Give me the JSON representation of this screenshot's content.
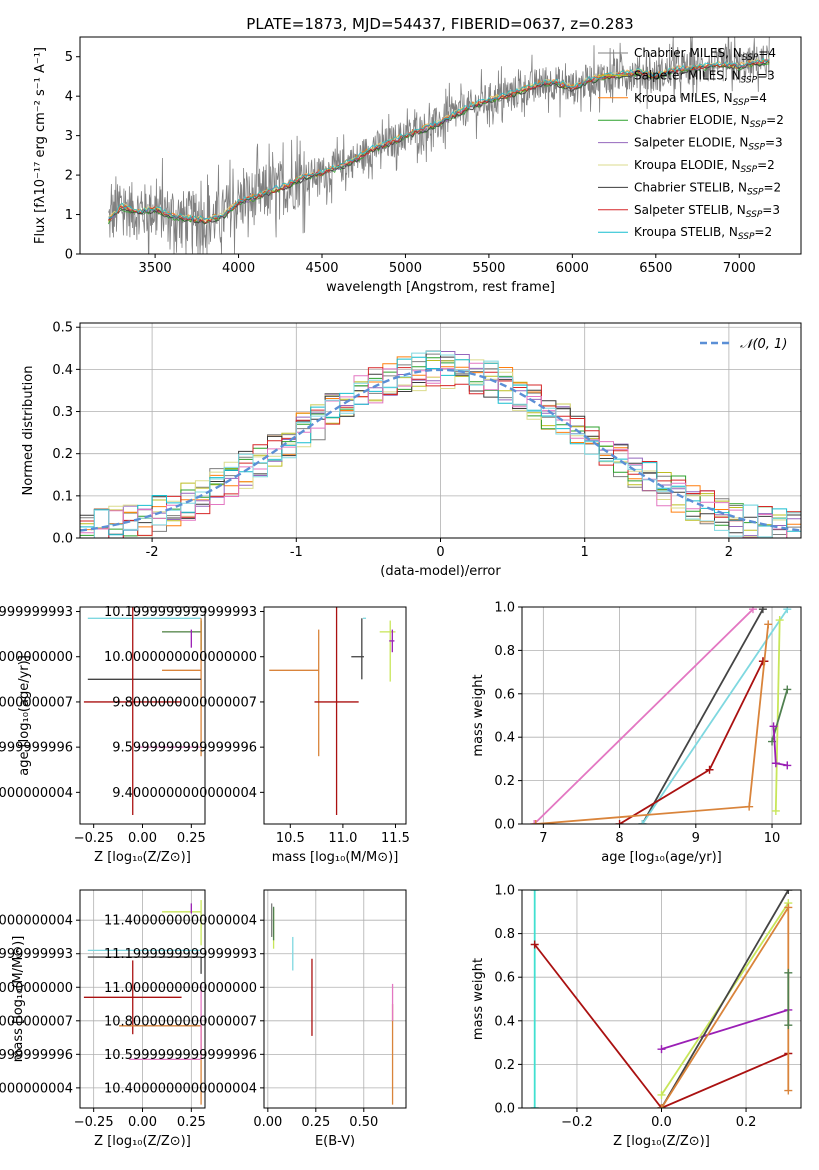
{
  "title": "PLATE=1873, MJD=54437, FIBERID=0637, z=0.283",
  "colors": {
    "m1": "#7f7f7f",
    "m2": "#bcbd22",
    "m3": "#ff7f0e",
    "m4": "#2ca02c",
    "m5": "#9467bd",
    "m6": "#dbdb8d",
    "m7": "#3b3b3b",
    "m8": "#d62728",
    "m9": "#17becf",
    "gray": "#808080",
    "dark": "#444444",
    "red": "#aa1111",
    "orange": "#d9843b",
    "pink": "#e377c2",
    "cyan": "#7fd8e0",
    "purple": "#9a1fb5",
    "lime": "#c8e65a",
    "green": "#508050",
    "teal": "#40e0d0",
    "normal": "#5b8fd6"
  },
  "chart_data": [
    {
      "id": "spectrum",
      "type": "line",
      "title": "PLATE=1873, MJD=54437, FIBERID=0637, z=0.283",
      "xlabel": "wavelength [Angstrom, rest frame]",
      "ylabel": "Flux [fλ10⁻¹⁷ erg cm⁻² s⁻¹ A⁻¹]",
      "xlim": [
        3050,
        7370
      ],
      "ylim": [
        0,
        5.5
      ],
      "xticks": [
        3500,
        4000,
        4500,
        5000,
        5500,
        6000,
        6500,
        7000
      ],
      "yticks": [
        0,
        1,
        2,
        3,
        4,
        5
      ],
      "legend_position": "upper right",
      "legend": [
        {
          "label": "Chabrier MILES, N",
          "sub": "SSP",
          "tail": "=4",
          "color": "#7f7f7f"
        },
        {
          "label": "Salpeter MILES, N",
          "sub": "SSP",
          "tail": "=3",
          "color": "#bcbd22"
        },
        {
          "label": "Kroupa MILES, N",
          "sub": "SSP",
          "tail": "=4",
          "color": "#ff7f0e"
        },
        {
          "label": "Chabrier ELODIE, N",
          "sub": "SSP",
          "tail": "=2",
          "color": "#2ca02c"
        },
        {
          "label": "Salpeter ELODIE, N",
          "sub": "SSP",
          "tail": "=3",
          "color": "#9467bd"
        },
        {
          "label": "Kroupa ELODIE, N",
          "sub": "SSP",
          "tail": "=2",
          "color": "#dbdb8d"
        },
        {
          "label": "Chabrier STELIB, N",
          "sub": "SSP",
          "tail": "=2",
          "color": "#3b3b3b"
        },
        {
          "label": "Salpeter STELIB, N",
          "sub": "SSP",
          "tail": "=3",
          "color": "#d62728"
        },
        {
          "label": "Kroupa STELIB, N",
          "sub": "SSP",
          "tail": "=2",
          "color": "#17becf"
        }
      ],
      "continuum": [
        [
          3220,
          0.85
        ],
        [
          3300,
          1.2
        ],
        [
          3400,
          1.05
        ],
        [
          3500,
          1.15
        ],
        [
          3600,
          0.95
        ],
        [
          3700,
          0.9
        ],
        [
          3800,
          0.85
        ],
        [
          3900,
          0.95
        ],
        [
          4000,
          1.3
        ],
        [
          4100,
          1.45
        ],
        [
          4200,
          1.6
        ],
        [
          4300,
          1.75
        ],
        [
          4400,
          1.95
        ],
        [
          4500,
          2.05
        ],
        [
          4600,
          2.2
        ],
        [
          4700,
          2.4
        ],
        [
          4800,
          2.65
        ],
        [
          4900,
          2.8
        ],
        [
          5000,
          3.0
        ],
        [
          5100,
          3.15
        ],
        [
          5200,
          3.3
        ],
        [
          5300,
          3.55
        ],
        [
          5400,
          3.75
        ],
        [
          5500,
          3.9
        ],
        [
          5600,
          4.0
        ],
        [
          5700,
          4.15
        ],
        [
          5800,
          4.3
        ],
        [
          5900,
          4.35
        ],
        [
          6000,
          4.2
        ],
        [
          6100,
          4.4
        ],
        [
          6200,
          4.5
        ],
        [
          6300,
          4.55
        ],
        [
          6400,
          4.6
        ],
        [
          6500,
          4.5
        ],
        [
          6600,
          4.65
        ],
        [
          6700,
          4.7
        ],
        [
          6800,
          4.75
        ],
        [
          6900,
          4.8
        ],
        [
          7000,
          4.75
        ],
        [
          7100,
          4.85
        ],
        [
          7180,
          4.9
        ]
      ]
    },
    {
      "id": "residuals",
      "type": "histogram",
      "xlabel": "(data-model)/error",
      "ylabel": "Normed distribution",
      "xlim": [
        -2.5,
        2.5
      ],
      "ylim": [
        0,
        0.51
      ],
      "xticks": [
        -2,
        -1,
        0,
        1,
        2
      ],
      "yticks": [
        0.0,
        0.1,
        0.2,
        0.3,
        0.4,
        0.5
      ],
      "legend_position": "upper right",
      "legend_label": "𝒩(0, 1)",
      "bin_width": 0.1,
      "bin_start": -2.5
    },
    {
      "id": "z-age",
      "type": "scatter",
      "xlabel": "Z [log₁₀(Z/Z⊙)]",
      "ylabel": "age  [log₁₀(age/yr)]",
      "xlim": [
        -0.32,
        0.32
      ],
      "ylim": [
        9.26,
        10.22
      ],
      "xticks": [
        -0.25,
        0.0,
        0.25
      ],
      "yticks": [
        9.4,
        9.6,
        9.8,
        10.0,
        10.2
      ],
      "points": [
        {
          "x": 0.3,
          "y": 10.17,
          "xerr": [
            0.58,
            0.0
          ],
          "yerr": [
            0.0,
            0.0
          ],
          "color": "#7fd8e0"
        },
        {
          "x": 0.3,
          "y": 10.11,
          "xerr": [
            0.2,
            0.0
          ],
          "yerr": [
            0.08,
            0.05
          ],
          "color": "#c8e65a"
        },
        {
          "x": 0.3,
          "y": 10.11,
          "xerr": [
            0.2,
            0.0
          ],
          "yerr": [
            0.08,
            0.05
          ],
          "color": "#508050"
        },
        {
          "x": 0.25,
          "y": 10.07,
          "xerr": [
            0.0,
            0.0
          ],
          "yerr": [
            0.03,
            0.05
          ],
          "color": "#9a1fb5"
        },
        {
          "x": 0.3,
          "y": 9.94,
          "xerr": [
            0.2,
            0.0
          ],
          "yerr": [
            0.38,
            0.23
          ],
          "color": "#d9843b"
        },
        {
          "x": 0.3,
          "y": 9.9,
          "xerr": [
            0.58,
            0.0
          ],
          "yerr": [
            0.0,
            0.0
          ],
          "color": "#444444"
        },
        {
          "x": -0.05,
          "y": 9.8,
          "xerr": [
            0.25,
            0.25
          ],
          "yerr": [
            0.5,
            0.5
          ],
          "color": "#aa1111"
        },
        {
          "x": 0.3,
          "y": 9.6,
          "xerr": [
            0.33,
            0.0
          ],
          "yerr": [
            0.0,
            0.0
          ],
          "color": "#e377c2"
        }
      ]
    },
    {
      "id": "mass-age",
      "type": "scatter",
      "xlabel": "mass [log₁₀(M/M⊙)]",
      "ylabel": "",
      "xlim": [
        10.25,
        11.6
      ],
      "ylim": [
        9.26,
        10.22
      ],
      "xticks": [
        10.5,
        11.0,
        11.5
      ],
      "yticks": [
        9.4,
        9.6,
        9.8,
        10.0,
        10.2
      ],
      "points": [
        {
          "x": 11.22,
          "y": 10.17,
          "xerr": [
            0.03,
            0.0
          ],
          "yerr": [
            0.0,
            0.0
          ],
          "color": "#7fd8e0"
        },
        {
          "x": 11.45,
          "y": 10.11,
          "xerr": [
            0.1,
            0.05
          ],
          "yerr": [
            0.22,
            0.05
          ],
          "color": "#c8e65a"
        },
        {
          "x": 11.47,
          "y": 10.07,
          "xerr": [
            0.03,
            0.02
          ],
          "yerr": [
            0.05,
            0.05
          ],
          "color": "#9a1fb5"
        },
        {
          "x": 11.18,
          "y": 10.0,
          "xerr": [
            0.1,
            0.02
          ],
          "yerr": [
            0.1,
            0.17
          ],
          "color": "#444444"
        },
        {
          "x": 10.77,
          "y": 9.94,
          "xerr": [
            0.0,
            0.0
          ],
          "yerr": [
            0.38,
            0.18
          ],
          "color": "#d9843b"
        },
        {
          "x": 10.3,
          "y": 9.94,
          "xerr": [
            0.0,
            0.47
          ],
          "yerr": [
            0.0,
            0.0
          ],
          "color": "#d9843b"
        },
        {
          "x": 10.94,
          "y": 9.8,
          "xerr": [
            0.21,
            0.21
          ],
          "yerr": [
            0.5,
            0.5
          ],
          "color": "#aa1111"
        },
        {
          "x": 10.57,
          "y": 9.6,
          "xerr": [
            0.0,
            0.0
          ],
          "yerr": [
            0.0,
            0.0
          ],
          "color": "#e377c2"
        }
      ]
    },
    {
      "id": "age-massweight",
      "type": "line",
      "xlabel": "age  [log₁₀(age/yr)]",
      "ylabel": "mass weight",
      "xlim": [
        6.72,
        10.38
      ],
      "ylim": [
        0,
        1.0
      ],
      "xticks": [
        7,
        8,
        9,
        10
      ],
      "yticks": [
        0.0,
        0.2,
        0.4,
        0.6,
        0.8,
        1.0
      ],
      "series": [
        {
          "color": "#e377c2",
          "points": [
            [
              6.88,
              0.0
            ],
            [
              9.75,
              0.99
            ]
          ]
        },
        {
          "color": "#444444",
          "points": [
            [
              8.3,
              0.0
            ],
            [
              9.88,
              0.99
            ]
          ]
        },
        {
          "color": "#7fd8e0",
          "points": [
            [
              8.3,
              0.0
            ],
            [
              10.2,
              0.99
            ]
          ]
        },
        {
          "color": "#aa1111",
          "points": [
            [
              8.0,
              0.0
            ],
            [
              9.18,
              0.25
            ],
            [
              9.88,
              0.75
            ],
            [
              9.9,
              0.75
            ]
          ]
        },
        {
          "color": "#d9843b",
          "points": [
            [
              6.9,
              0.0
            ],
            [
              9.7,
              0.08
            ],
            [
              9.95,
              0.92
            ]
          ]
        },
        {
          "color": "#c8e65a",
          "points": [
            [
              10.05,
              0.06
            ],
            [
              10.1,
              0.94
            ]
          ]
        },
        {
          "color": "#508050",
          "points": [
            [
              10.0,
              0.38
            ],
            [
              10.2,
              0.62
            ]
          ]
        },
        {
          "color": "#9a1fb5",
          "points": [
            [
              10.02,
              0.45
            ],
            [
              10.05,
              0.28
            ],
            [
              10.2,
              0.27
            ]
          ]
        }
      ]
    },
    {
      "id": "z-mass",
      "type": "scatter",
      "xlabel": "Z [log₁₀(Z/Z⊙)]",
      "ylabel": "mass [log₁₀(M/M⊙)]",
      "xlim": [
        -0.32,
        0.32
      ],
      "ylim": [
        10.28,
        11.58
      ],
      "xticks": [
        -0.25,
        0.0,
        0.25
      ],
      "yticks": [
        10.4,
        10.6,
        10.8,
        11.0,
        11.2,
        11.4
      ],
      "points": [
        {
          "x": 0.3,
          "y": 11.22,
          "xerr": [
            0.58,
            0.0
          ],
          "yerr": [
            0.0,
            0.0
          ],
          "color": "#7fd8e0"
        },
        {
          "x": 0.3,
          "y": 11.18,
          "xerr": [
            0.58,
            0.0
          ],
          "yerr": [
            0.1,
            0.0
          ],
          "color": "#444444"
        },
        {
          "x": 0.3,
          "y": 11.45,
          "xerr": [
            0.2,
            0.0
          ],
          "yerr": [
            0.2,
            0.07
          ],
          "color": "#c8e65a"
        },
        {
          "x": 0.25,
          "y": 11.47,
          "xerr": [
            0.0,
            0.0
          ],
          "yerr": [
            0.03,
            0.03
          ],
          "color": "#9a1fb5"
        },
        {
          "x": -0.05,
          "y": 10.94,
          "xerr": [
            0.25,
            0.25
          ],
          "yerr": [
            0.22,
            0.22
          ],
          "color": "#aa1111"
        },
        {
          "x": 0.3,
          "y": 10.77,
          "xerr": [
            0.42,
            0.0
          ],
          "yerr": [
            0.47,
            0.0
          ],
          "color": "#d9843b"
        },
        {
          "x": 0.3,
          "y": 10.57,
          "xerr": [
            0.37,
            0.0
          ],
          "yerr": [
            0.0,
            0.45
          ],
          "color": "#e377c2"
        }
      ]
    },
    {
      "id": "ebv-mass",
      "type": "scatter",
      "xlabel": "E(B-V)",
      "ylabel": "",
      "xlim": [
        -0.02,
        0.72
      ],
      "ylim": [
        10.28,
        11.58
      ],
      "xticks": [
        0.0,
        0.25,
        0.5
      ],
      "yticks": [
        10.4,
        10.6,
        10.8,
        11.0,
        11.2,
        11.4
      ],
      "points": [
        {
          "x": 0.02,
          "y": 11.4,
          "xerr": [
            0.0,
            0.0
          ],
          "yerr": [
            0.1,
            0.1
          ],
          "color": "#7f7f7f"
        },
        {
          "x": 0.03,
          "y": 11.35,
          "xerr": [
            0.0,
            0.0
          ],
          "yerr": [
            0.12,
            0.12
          ],
          "color": "#c8e65a"
        },
        {
          "x": 0.03,
          "y": 11.38,
          "xerr": [
            0.0,
            0.0
          ],
          "yerr": [
            0.1,
            0.1
          ],
          "color": "#508050"
        },
        {
          "x": 0.13,
          "y": 11.2,
          "xerr": [
            0.0,
            0.0
          ],
          "yerr": [
            0.1,
            0.1
          ],
          "color": "#7fd8e0"
        },
        {
          "x": 0.23,
          "y": 10.94,
          "xerr": [
            0.0,
            0.0
          ],
          "yerr": [
            0.23,
            0.23
          ],
          "color": "#aa1111"
        },
        {
          "x": 0.65,
          "y": 10.7,
          "xerr": [
            0.0,
            0.0
          ],
          "yerr": [
            0.4,
            0.2
          ],
          "color": "#d9843b"
        },
        {
          "x": 0.65,
          "y": 10.9,
          "xerr": [
            0.0,
            0.0
          ],
          "yerr": [
            0.1,
            0.12
          ],
          "color": "#e377c2"
        }
      ]
    },
    {
      "id": "z-massweight",
      "type": "line",
      "xlabel": "Z [log₁₀(Z/Z⊙)]",
      "ylabel": "mass weight",
      "xlim": [
        -0.33,
        0.33
      ],
      "ylim": [
        0,
        1.0
      ],
      "xticks": [
        -0.2,
        0.0,
        0.2
      ],
      "yticks": [
        0.0,
        0.2,
        0.4,
        0.6,
        0.8,
        1.0
      ],
      "series": [
        {
          "color": "#40e0d0",
          "points": [
            [
              -0.3,
              0.0
            ],
            [
              -0.3,
              1.0
            ]
          ]
        },
        {
          "color": "#aa1111",
          "points": [
            [
              -0.3,
              0.75
            ],
            [
              0.0,
              0.0
            ],
            [
              0.3,
              0.25
            ]
          ]
        },
        {
          "color": "#9a1fb5",
          "points": [
            [
              0.0,
              0.27
            ],
            [
              0.3,
              0.45
            ]
          ]
        },
        {
          "color": "#c8e65a",
          "points": [
            [
              0.0,
              0.06
            ],
            [
              0.3,
              0.94
            ]
          ]
        },
        {
          "color": "#444444",
          "points": [
            [
              0.0,
              0.0
            ],
            [
              0.3,
              1.0
            ]
          ]
        },
        {
          "color": "#d9843b",
          "points": [
            [
              0.0,
              0.0
            ],
            [
              0.3,
              0.92
            ],
            [
              0.3,
              0.08
            ]
          ]
        },
        {
          "color": "#508050",
          "points": [
            [
              0.3,
              0.62
            ],
            [
              0.3,
              0.38
            ]
          ]
        }
      ]
    }
  ]
}
